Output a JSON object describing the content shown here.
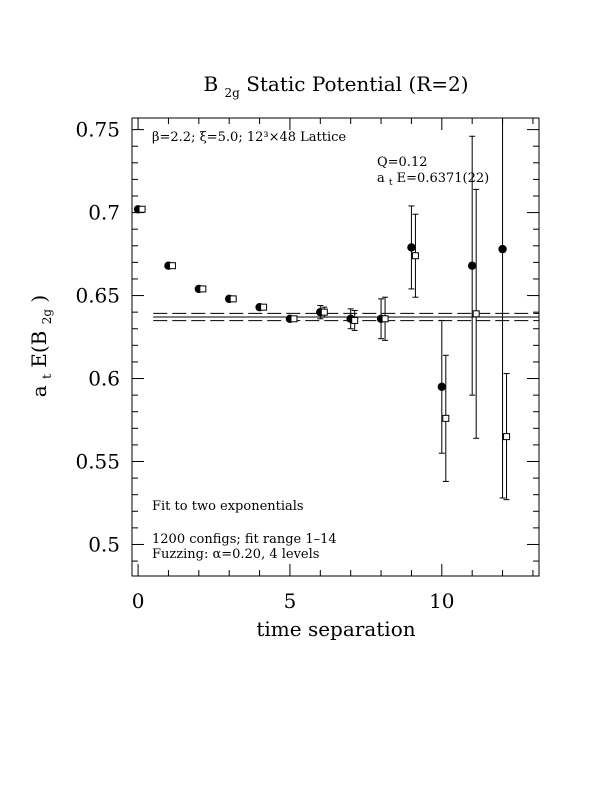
{
  "chart_data": {
    "type": "scatter",
    "title": {
      "main": "B",
      "sub": "2g",
      "rest": " Static Potential (R=2)"
    },
    "xlabel": "time separation",
    "ylabel": {
      "pre": "a",
      "sub1": "t",
      "mid": "E(B",
      "sub2": "2g",
      "post": ")"
    },
    "xlim": [
      -0.2,
      13.2
    ],
    "ylim": [
      0.481,
      0.757
    ],
    "x_ticks": [
      0,
      5,
      10
    ],
    "y_ticks": [
      0.5,
      0.55,
      0.6,
      0.65,
      0.7,
      0.75
    ],
    "y_tick_labels": [
      "0.5",
      "0.55",
      "0.6",
      "0.65",
      "0.7",
      "0.75"
    ],
    "lattice_label": "β=2.2; ξ=5.0; 12³×48 Lattice",
    "fit_q": "Q=0.12",
    "fit_energy": {
      "pre": "a",
      "sub": "t",
      "post": "E=0.6371(22)"
    },
    "fit_note": "Fit to two exponentials",
    "configs_note": "1200 configs; fit range 1–14",
    "fuzzing_note": "Fuzzing: α=0.20, 4 levels",
    "fit_lines": {
      "central": 0.6371,
      "lower": 0.6349,
      "upper": 0.6393,
      "x_start": 0.5
    },
    "series": [
      {
        "marker": "filled-circle",
        "points": [
          {
            "x": 0,
            "y": 0.702,
            "err": 0
          },
          {
            "x": 1,
            "y": 0.668,
            "err": 0
          },
          {
            "x": 2,
            "y": 0.654,
            "err": 0
          },
          {
            "x": 3,
            "y": 0.648,
            "err": 0
          },
          {
            "x": 4,
            "y": 0.643,
            "err": 0
          },
          {
            "x": 5,
            "y": 0.636,
            "err": 0
          },
          {
            "x": 6,
            "y": 0.64,
            "err": 0.004
          },
          {
            "x": 7,
            "y": 0.636,
            "err": 0.006
          },
          {
            "x": 8,
            "y": 0.636,
            "err": 0.012
          },
          {
            "x": 9,
            "y": 0.679,
            "err": 0.025
          },
          {
            "x": 10,
            "y": 0.595,
            "err": 0.04
          },
          {
            "x": 11,
            "y": 0.668,
            "err": 0.078
          },
          {
            "x": 12,
            "y": 0.678,
            "err": 0.15
          }
        ]
      },
      {
        "marker": "open-square",
        "points": [
          {
            "x": 0,
            "y": 0.702,
            "err": 0
          },
          {
            "x": 1,
            "y": 0.668,
            "err": 0
          },
          {
            "x": 2,
            "y": 0.654,
            "err": 0
          },
          {
            "x": 3,
            "y": 0.648,
            "err": 0
          },
          {
            "x": 4,
            "y": 0.643,
            "err": 0
          },
          {
            "x": 5,
            "y": 0.636,
            "err": 0
          },
          {
            "x": 6,
            "y": 0.64,
            "err": 0.003
          },
          {
            "x": 7,
            "y": 0.635,
            "err": 0.006
          },
          {
            "x": 8,
            "y": 0.636,
            "err": 0.013
          },
          {
            "x": 9,
            "y": 0.674,
            "err": 0.025
          },
          {
            "x": 10,
            "y": 0.576,
            "err": 0.038
          },
          {
            "x": 11,
            "y": 0.639,
            "err": 0.075
          },
          {
            "x": 12,
            "y": 0.565,
            "err": 0.038
          }
        ]
      }
    ]
  }
}
